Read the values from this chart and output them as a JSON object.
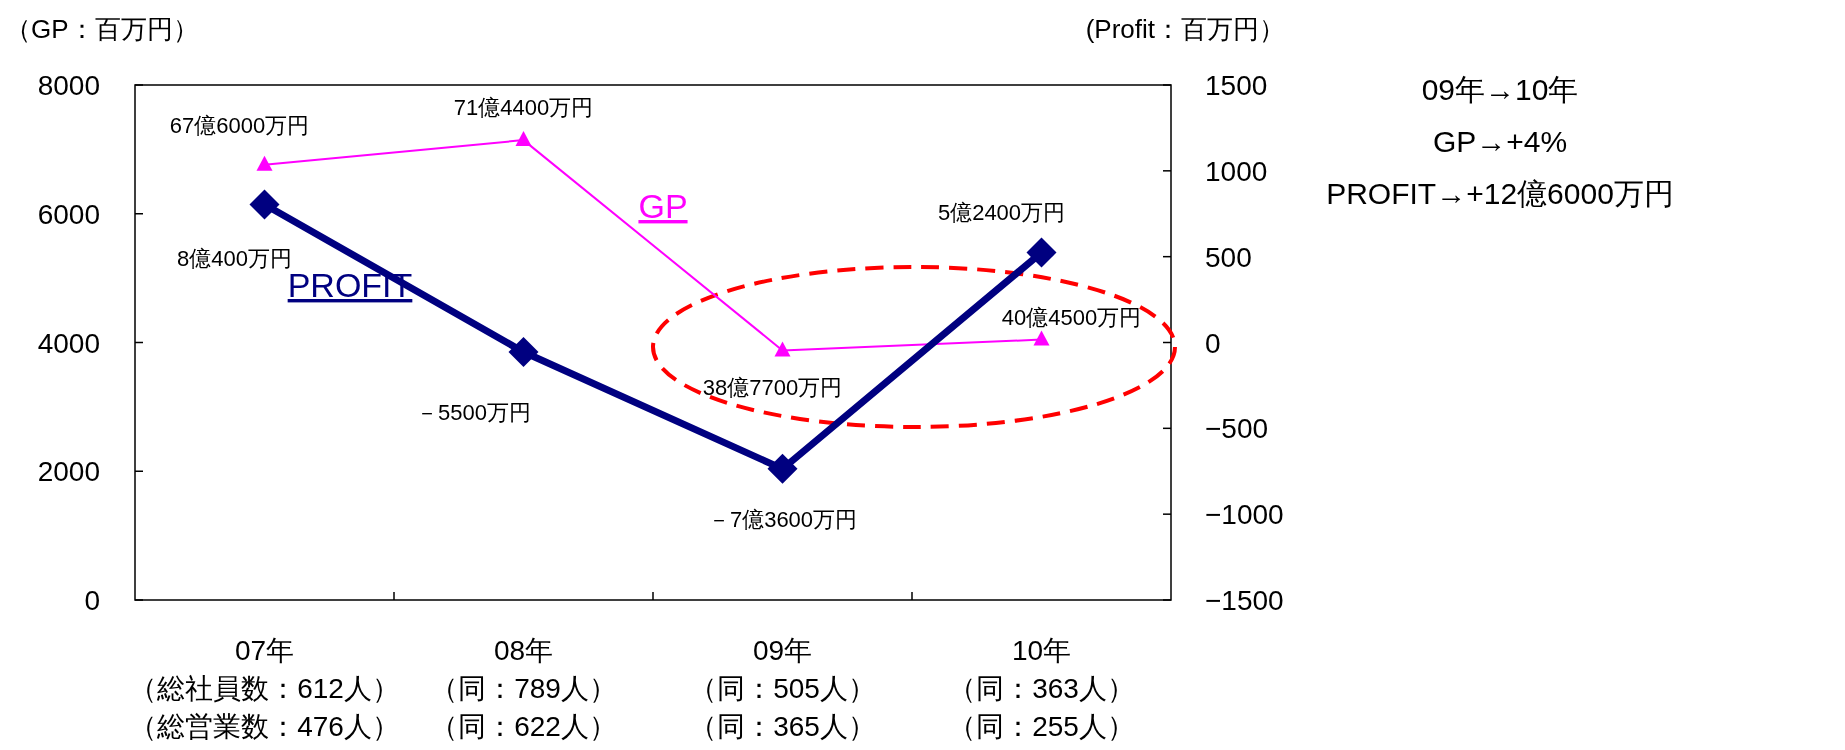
{
  "chart_data": {
    "type": "line",
    "ylabel": "（GP：百万円）",
    "y2label": "(Profit：百万円）",
    "categories": [
      "07年（総社員数：612人）（総営業数：476人）",
      "08年（同：789人）（同：622人）",
      "09年（同：505人）（同：365人）",
      "10年（同：363人）（同：255人）"
    ],
    "series": [
      {
        "name": "GP",
        "color": "#ff00ff",
        "marker": "triangle",
        "values": [
          6760,
          7144,
          3877,
          4045
        ]
      },
      {
        "name": "PROFIT",
        "color": "#000080",
        "marker": "diamond",
        "axis": "y2",
        "values": [
          804,
          -55,
          -736,
          524
        ]
      }
    ],
    "ylim": [
      0,
      8000
    ],
    "yticks": [
      0,
      2000,
      4000,
      6000,
      8000
    ],
    "y2lim": [
      -1500,
      1500
    ],
    "y2ticks": [
      -1500,
      -1000,
      -500,
      0,
      500,
      1000,
      1500
    ],
    "annotations": [
      "09年→10年",
      "GP→+4%",
      "PROFIT→+12億6000万円",
      {
        "text": "67億6000万円",
        "x": "07年（総社員数：612人）（総営業数：476人）",
        "y": 6760
      },
      {
        "text": "71億4400万円",
        "x": "08年（同：789人）（同：622人）",
        "y": 7144
      },
      {
        "text": "38億7700万円",
        "x": "09年（同：505人）（同：365人）",
        "y": 3877
      },
      {
        "text": "40億4500万円",
        "x": "10年（同：363人）（同：255人）",
        "y": 4045
      },
      "8億400万円",
      "－5500万円",
      "－7億3600万円",
      "5億2400万円"
    ]
  }
}
